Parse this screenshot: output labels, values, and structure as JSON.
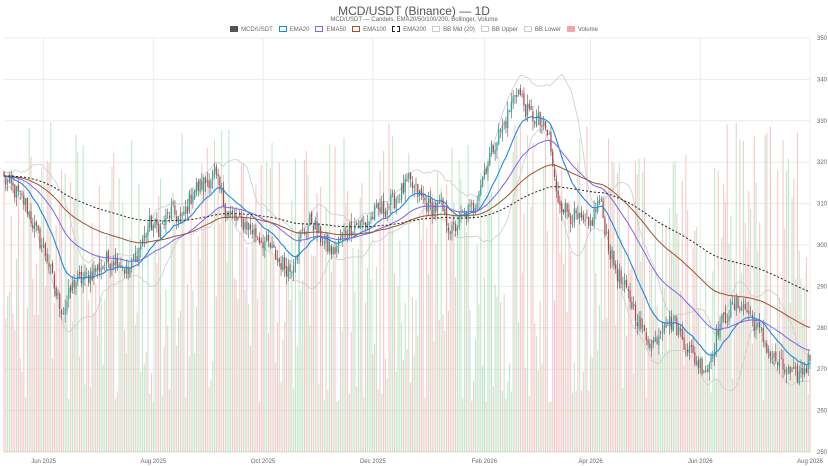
{
  "chart_data": {
    "type": "candlestick",
    "title": "MCD/USDT (Binance) — 1D",
    "subtitle": "MCD/USDT — Candels, EMA20/50/100/200, Bollinger, Volume",
    "legend": [
      {
        "name": "MCD/USDT",
        "color": "#555555",
        "style": "fill"
      },
      {
        "name": "EMA20",
        "color": "#1e88e5",
        "style": "line"
      },
      {
        "name": "EMA50",
        "color": "#7b68ee",
        "style": "line"
      },
      {
        "name": "EMA100",
        "color": "#a0522d",
        "style": "line"
      },
      {
        "name": "EMA200",
        "color": "#222222",
        "style": "dashed"
      },
      {
        "name": "BB Mid (20)",
        "color": "#cccccc",
        "style": "line"
      },
      {
        "name": "BB Upper",
        "color": "#cccccc",
        "style": "line"
      },
      {
        "name": "BB Lower",
        "color": "#cccccc",
        "style": "line"
      },
      {
        "name": "Volume",
        "color": "#f4a6a6",
        "style": "fill"
      }
    ],
    "xlabel": "",
    "ylabel": "",
    "ylim": [
      250,
      350
    ],
    "y_ticks": [
      250,
      260,
      270,
      280,
      290,
      300,
      310,
      320,
      330,
      340,
      350
    ],
    "x_ticks": [
      "Jun 2025",
      "Aug 2025",
      "Oct 2025",
      "Dec 2025",
      "Feb 2026",
      "Apr 2026",
      "Jun 2026",
      "Aug 2026"
    ],
    "x_range": [
      "2025-05-10",
      "2026-08-01"
    ],
    "grid": true,
    "colors": {
      "up": "#26a69a",
      "down": "#b34747",
      "wick": "#555555",
      "vol_up": "#a8dcb4",
      "vol_down": "#f4b0b0",
      "bb": "#cccccc"
    },
    "close_path": [
      [
        "2025-05-10",
        316
      ],
      [
        "2025-05-16",
        313
      ],
      [
        "2025-05-22",
        310
      ],
      [
        "2025-05-28",
        303
      ],
      [
        "2025-06-03",
        297
      ],
      [
        "2025-06-08",
        288
      ],
      [
        "2025-06-12",
        284
      ],
      [
        "2025-06-18",
        291
      ],
      [
        "2025-06-24",
        292
      ],
      [
        "2025-06-30",
        294
      ],
      [
        "2025-07-06",
        296
      ],
      [
        "2025-07-12",
        297
      ],
      [
        "2025-07-18",
        293
      ],
      [
        "2025-07-24",
        299
      ],
      [
        "2025-07-30",
        305
      ],
      [
        "2025-08-05",
        304
      ],
      [
        "2025-08-11",
        308
      ],
      [
        "2025-08-17",
        306
      ],
      [
        "2025-08-23",
        313
      ],
      [
        "2025-08-29",
        315
      ],
      [
        "2025-09-04",
        317
      ],
      [
        "2025-09-10",
        309
      ],
      [
        "2025-09-16",
        306
      ],
      [
        "2025-09-22",
        305
      ],
      [
        "2025-09-28",
        302
      ],
      [
        "2025-10-04",
        300
      ],
      [
        "2025-10-10",
        296
      ],
      [
        "2025-10-16",
        294
      ],
      [
        "2025-10-22",
        302
      ],
      [
        "2025-10-28",
        306
      ],
      [
        "2025-11-03",
        301
      ],
      [
        "2025-11-09",
        298
      ],
      [
        "2025-11-15",
        303
      ],
      [
        "2025-11-21",
        305
      ],
      [
        "2025-11-27",
        305
      ],
      [
        "2025-12-03",
        308
      ],
      [
        "2025-12-09",
        309
      ],
      [
        "2025-12-15",
        312
      ],
      [
        "2025-12-21",
        315
      ],
      [
        "2025-12-27",
        312
      ],
      [
        "2026-01-02",
        309
      ],
      [
        "2026-01-08",
        309
      ],
      [
        "2026-01-14",
        303
      ],
      [
        "2026-01-20",
        307
      ],
      [
        "2026-01-26",
        309
      ],
      [
        "2026-02-01",
        318
      ],
      [
        "2026-02-07",
        325
      ],
      [
        "2026-02-13",
        330
      ],
      [
        "2026-02-19",
        338
      ],
      [
        "2026-02-25",
        332
      ],
      [
        "2026-03-03",
        330
      ],
      [
        "2026-03-09",
        326
      ],
      [
        "2026-03-13",
        312
      ],
      [
        "2026-03-19",
        308
      ],
      [
        "2026-03-25",
        306
      ],
      [
        "2026-03-31",
        304
      ],
      [
        "2026-04-06",
        311
      ],
      [
        "2026-04-12",
        298
      ],
      [
        "2026-04-18",
        291
      ],
      [
        "2026-04-24",
        286
      ],
      [
        "2026-04-30",
        279
      ],
      [
        "2026-05-06",
        276
      ],
      [
        "2026-05-12",
        282
      ],
      [
        "2026-05-18",
        281
      ],
      [
        "2026-05-24",
        276
      ],
      [
        "2026-05-30",
        272
      ],
      [
        "2026-06-05",
        270
      ],
      [
        "2026-06-11",
        280
      ],
      [
        "2026-06-17",
        284
      ],
      [
        "2026-06-23",
        286
      ],
      [
        "2026-06-29",
        283
      ],
      [
        "2026-07-05",
        278
      ],
      [
        "2026-07-11",
        273
      ],
      [
        "2026-07-17",
        270
      ],
      [
        "2026-07-23",
        268
      ],
      [
        "2026-07-29",
        270
      ],
      [
        "2026-08-01",
        273
      ]
    ]
  }
}
